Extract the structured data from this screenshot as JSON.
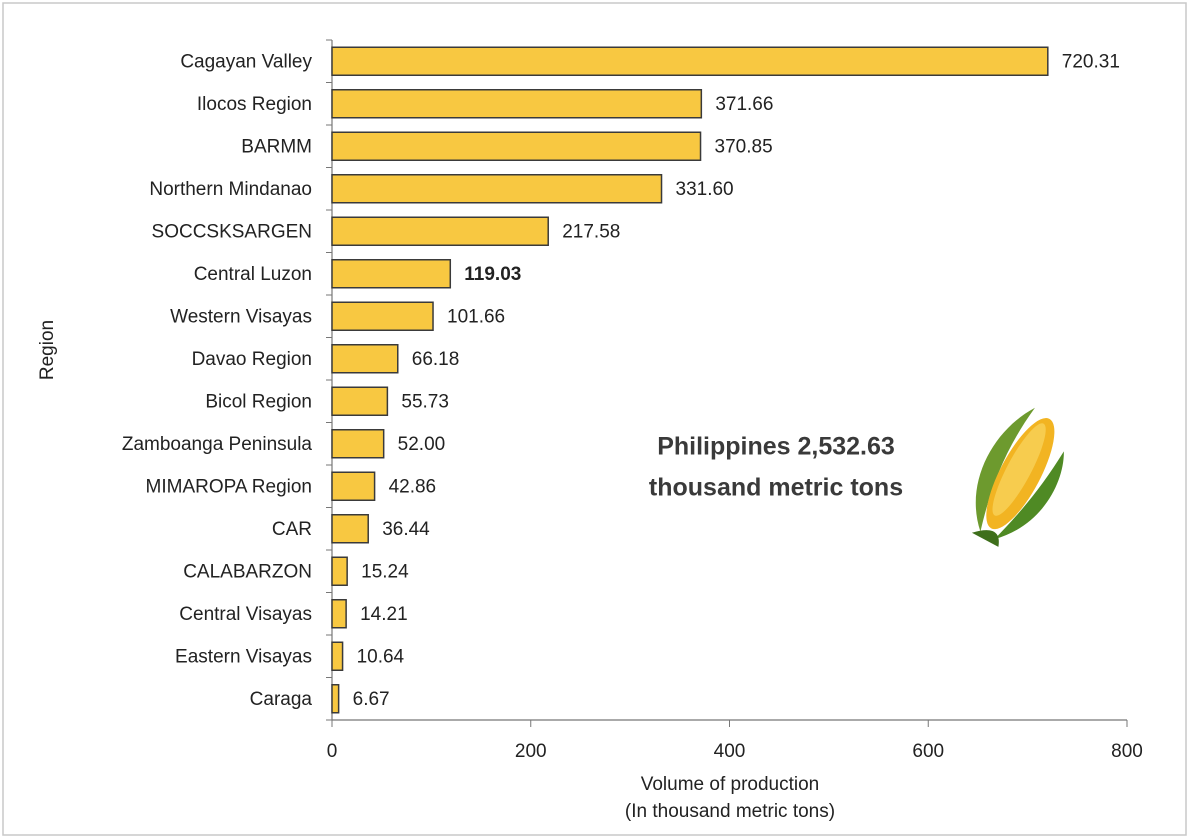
{
  "chart_data": {
    "type": "hbar",
    "categories": [
      "Cagayan Valley",
      "Ilocos Region",
      "BARMM",
      "Northern Mindanao",
      "SOCCSKSARGEN",
      "Central Luzon",
      "Western Visayas",
      "Davao Region",
      "Bicol Region",
      "Zamboanga Peninsula",
      "MIMAROPA Region",
      "CAR",
      "CALABARZON",
      "Central Visayas",
      "Eastern Visayas",
      "Caraga"
    ],
    "values": [
      720.31,
      371.66,
      370.85,
      331.6,
      217.58,
      119.03,
      101.66,
      66.18,
      55.73,
      52,
      42.86,
      36.44,
      15.24,
      14.21,
      10.64,
      6.67
    ],
    "value_labels": [
      "720.31",
      "371.66",
      "370.85",
      "331.60",
      "217.58",
      "119.03",
      "101.66",
      "66.18",
      "55.73",
      "52.00",
      "42.86",
      "36.44",
      "15.24",
      "14.21",
      "10.64",
      "6.67"
    ],
    "highlight_index": 5,
    "color": "#f8c841",
    "xlim": [
      0,
      800
    ],
    "xticks": [
      0,
      200,
      400,
      600,
      800
    ],
    "xlabel": [
      "Volume of production",
      "(In thousand metric tons)"
    ],
    "ylabel": "Region",
    "annotation": [
      "Philippines 2,532.63",
      "thousand metric tons"
    ]
  }
}
